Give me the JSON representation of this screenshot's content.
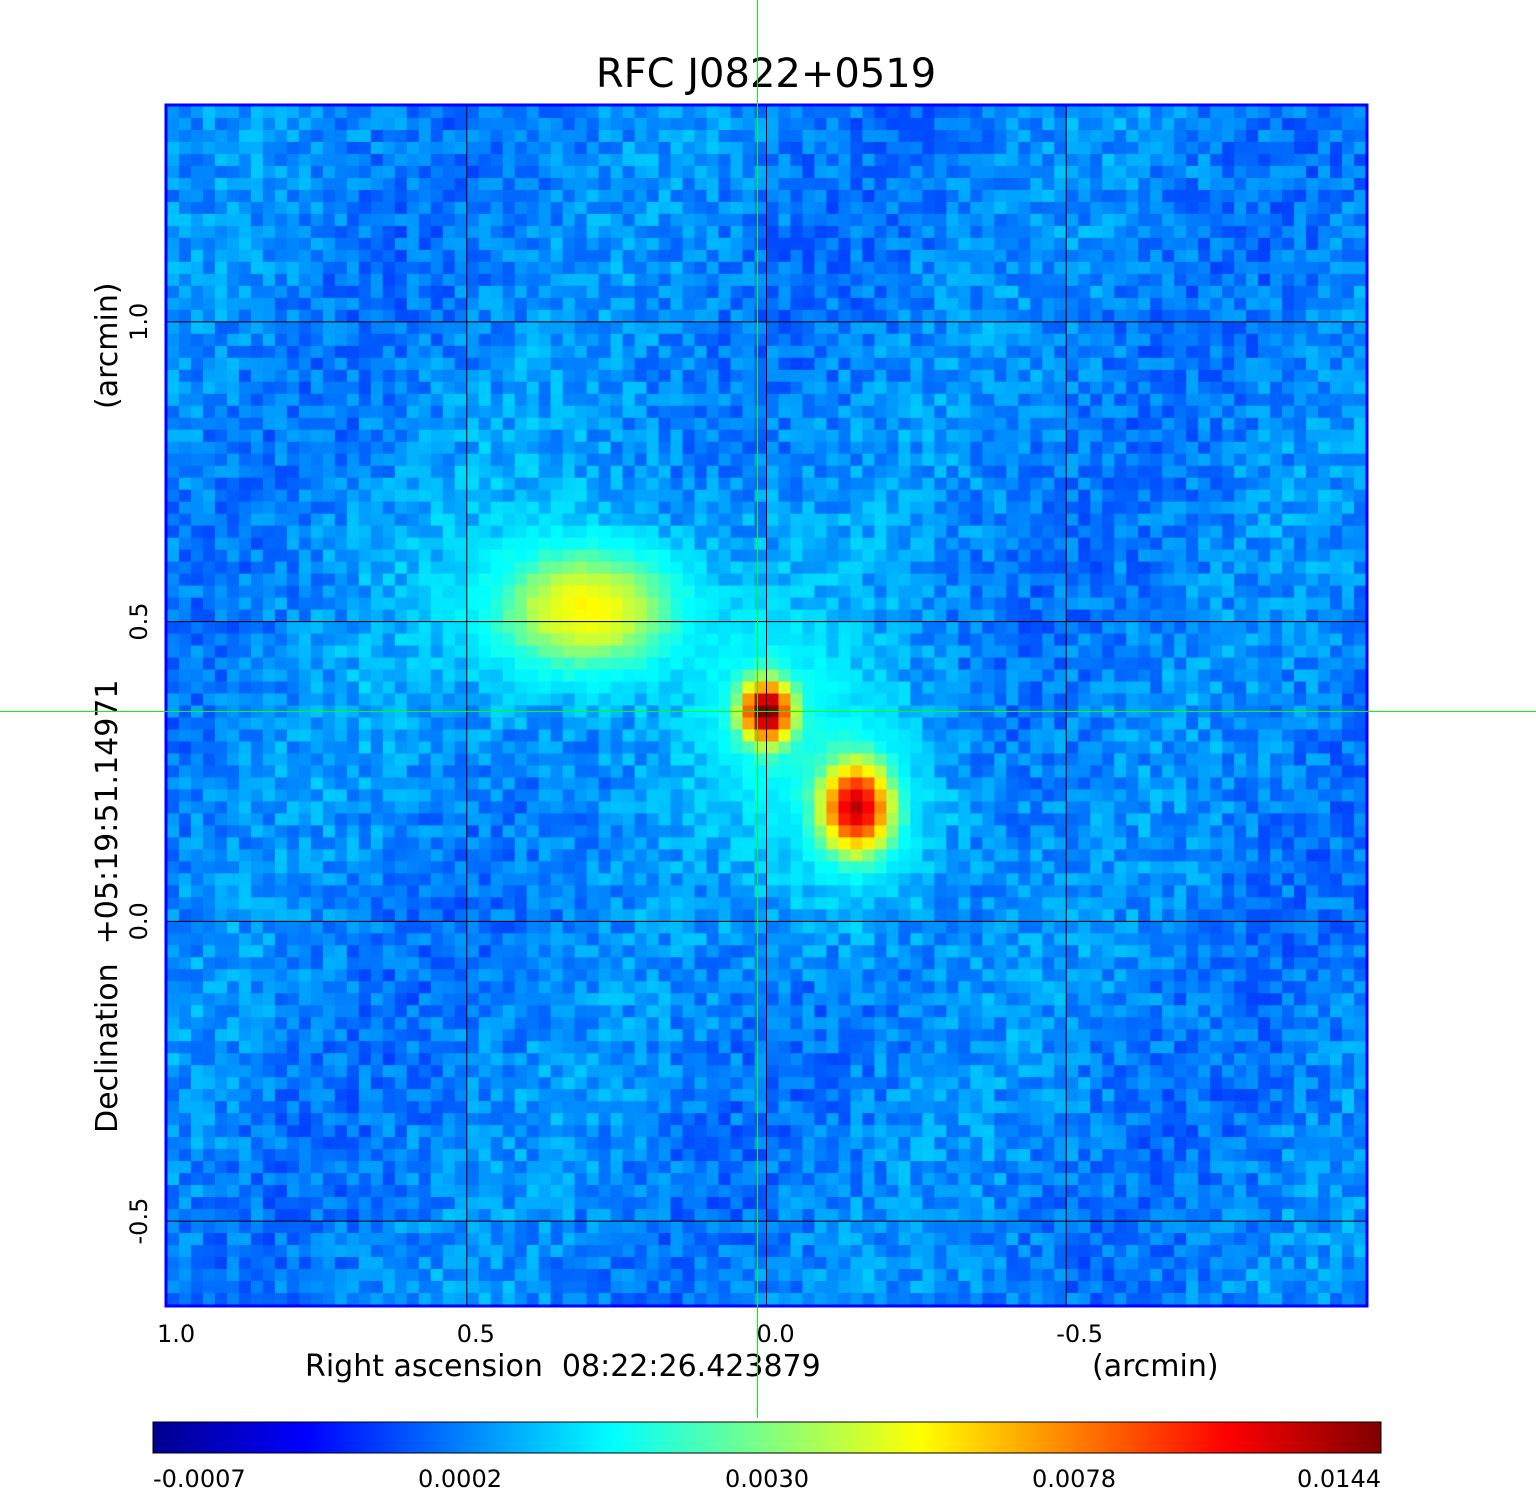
{
  "chart_data": {
    "type": "heatmap",
    "title": "RFC J0822+0519",
    "xlabel": "Right ascension  08:22:26.423879",
    "xunit": "(arcmin)",
    "ylabel": "Declination  +05:19:51.14971",
    "yunit": "(arcmin)",
    "xlim": [
      1.0,
      -1.0
    ],
    "ylim": [
      -0.64,
      1.36
    ],
    "x_ticks": [
      {
        "value": 1.0,
        "label": "1.0"
      },
      {
        "value": 0.5,
        "label": "0.5"
      },
      {
        "value": 0.0,
        "label": "0.0"
      },
      {
        "value": -0.5,
        "label": "-0.5"
      }
    ],
    "y_ticks": [
      {
        "value": 1.0,
        "label": "1.0"
      },
      {
        "value": 0.5,
        "label": "0.5"
      },
      {
        "value": 0.0,
        "label": "0.0"
      },
      {
        "value": -0.5,
        "label": "-0.5"
      }
    ],
    "grid": true,
    "crosshair": {
      "x": 0.0,
      "y": 0.35,
      "color": "#00ff00"
    },
    "colorbar": {
      "colormap": "jet",
      "ticks": [
        "-0.0007",
        "0.0002",
        "0.0030",
        "0.0078",
        "0.0144"
      ],
      "range": [
        -0.0007,
        0.0144
      ]
    },
    "features": [
      {
        "x": 0.3,
        "y": 0.52,
        "peak": 0.0045,
        "sx": 0.09,
        "sy": 0.06
      },
      {
        "x": 0.0,
        "y": 0.35,
        "peak": 0.0144,
        "sx": 0.025,
        "sy": 0.03
      },
      {
        "x": -0.15,
        "y": 0.19,
        "peak": 0.012,
        "sx": 0.035,
        "sy": 0.045
      }
    ],
    "colors": {
      "title": "#0a0ad2",
      "frame": "#0000ff",
      "grid": "#000000"
    }
  }
}
